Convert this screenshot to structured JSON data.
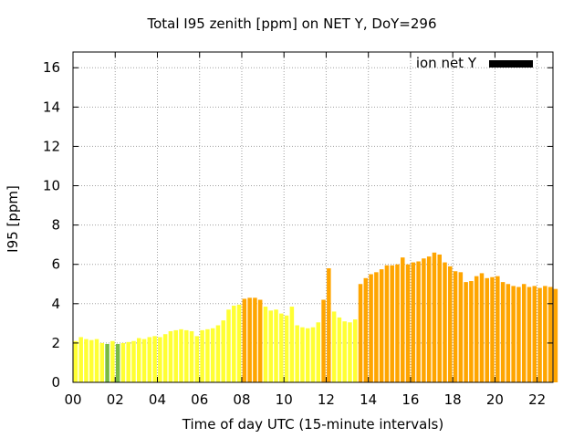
{
  "chart_data": {
    "type": "bar",
    "title": "Total I95 zenith [ppm] on NET Y, DoY=296",
    "xlabel": "Time of day UTC (15-minute intervals)",
    "ylabel": "I95 [ppm]",
    "ylim": [
      0,
      16.8
    ],
    "yticks": [
      "0",
      "2",
      "4",
      "6",
      "8",
      "10",
      "12",
      "14",
      "16"
    ],
    "xticks": [
      "00",
      "02",
      "04",
      "06",
      "08",
      "10",
      "12",
      "14",
      "16",
      "18",
      "20",
      "22"
    ],
    "xlim_hours": [
      0,
      22.75
    ],
    "bar_interval_hours": 0.25,
    "legend": {
      "label": "ion net Y",
      "position": "top-right",
      "color": "#000000"
    },
    "colors": {
      "yellow": "#ffff33",
      "orange": "#ffa500",
      "green": "#77bb44"
    },
    "grid": true,
    "values": [
      2.1,
      2.3,
      2.2,
      2.15,
      2.2,
      2.0,
      1.95,
      2.1,
      1.95,
      2.0,
      2.05,
      2.1,
      2.25,
      2.2,
      2.3,
      2.35,
      2.3,
      2.45,
      2.6,
      2.65,
      2.7,
      2.65,
      2.6,
      2.35,
      2.65,
      2.7,
      2.75,
      2.9,
      3.15,
      3.7,
      3.9,
      3.95,
      4.25,
      4.3,
      4.3,
      4.2,
      3.85,
      3.65,
      3.7,
      3.5,
      3.4,
      3.85,
      2.9,
      2.8,
      2.75,
      2.8,
      3.05,
      4.2,
      5.8,
      3.6,
      3.3,
      3.1,
      3.05,
      3.2,
      5.0,
      5.3,
      5.5,
      5.6,
      5.75,
      5.95,
      5.95,
      6.0,
      6.35,
      6.0,
      6.1,
      6.15,
      6.3,
      6.4,
      6.6,
      6.5,
      6.1,
      5.9,
      5.65,
      5.6,
      5.1,
      5.15,
      5.4,
      5.55,
      5.3,
      5.35,
      5.4,
      5.1,
      5.0,
      4.9,
      4.85,
      5.0,
      4.85,
      4.9,
      4.8,
      4.9,
      4.85,
      4.75
    ],
    "bar_colors": [
      "yellow",
      "yellow",
      "yellow",
      "yellow",
      "yellow",
      "yellow",
      "green",
      "yellow",
      "green",
      "yellow",
      "yellow",
      "yellow",
      "yellow",
      "yellow",
      "yellow",
      "yellow",
      "yellow",
      "yellow",
      "yellow",
      "yellow",
      "yellow",
      "yellow",
      "yellow",
      "yellow",
      "yellow",
      "yellow",
      "yellow",
      "yellow",
      "yellow",
      "yellow",
      "yellow",
      "yellow",
      "orange",
      "orange",
      "orange",
      "orange",
      "yellow",
      "yellow",
      "yellow",
      "yellow",
      "yellow",
      "yellow",
      "yellow",
      "yellow",
      "yellow",
      "yellow",
      "yellow",
      "orange",
      "orange",
      "yellow",
      "yellow",
      "yellow",
      "yellow",
      "yellow",
      "orange",
      "orange",
      "orange",
      "orange",
      "orange",
      "orange",
      "orange",
      "orange",
      "orange",
      "orange",
      "orange",
      "orange",
      "orange",
      "orange",
      "orange",
      "orange",
      "orange",
      "orange",
      "orange",
      "orange",
      "orange",
      "orange",
      "orange",
      "orange",
      "orange",
      "orange",
      "orange",
      "orange",
      "orange",
      "orange",
      "orange",
      "orange",
      "orange",
      "orange",
      "orange",
      "orange",
      "orange",
      "orange"
    ]
  }
}
